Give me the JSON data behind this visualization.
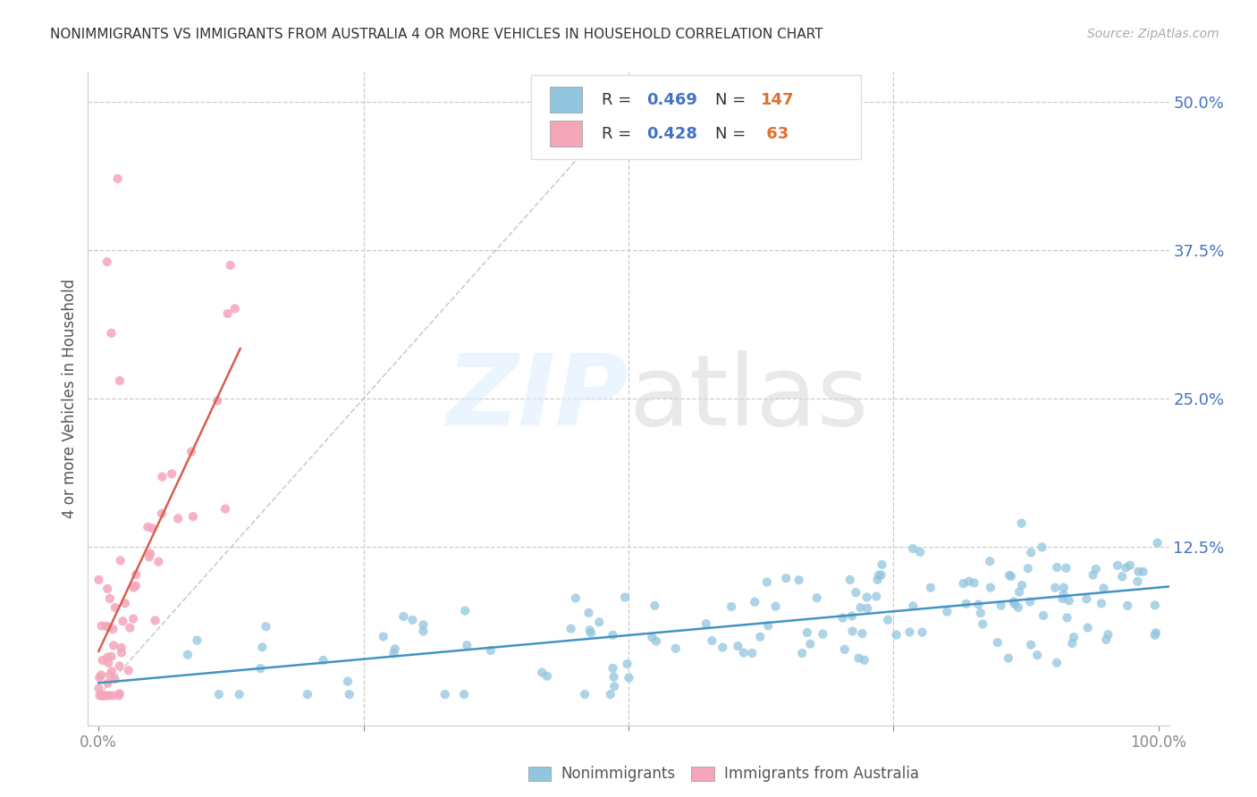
{
  "title": "NONIMMIGRANTS VS IMMIGRANTS FROM AUSTRALIA 4 OR MORE VEHICLES IN HOUSEHOLD CORRELATION CHART",
  "source": "Source: ZipAtlas.com",
  "ylabel": "4 or more Vehicles in Household",
  "xlim": [
    -0.01,
    1.01
  ],
  "ylim": [
    -0.025,
    0.525
  ],
  "yticks": [
    0.0,
    0.125,
    0.25,
    0.375,
    0.5
  ],
  "ytick_labels": [
    "",
    "12.5%",
    "25.0%",
    "37.5%",
    "50.0%"
  ],
  "xtick_labels": [
    "0.0%",
    "",
    "",
    "",
    "100.0%"
  ],
  "blue_R": 0.469,
  "blue_N": 147,
  "pink_R": 0.428,
  "pink_N": 63,
  "blue_color": "#92c5de",
  "pink_color": "#f4a6bb",
  "blue_line_color": "#4393c3",
  "pink_line_color": "#d6604d",
  "title_color": "#333333",
  "source_color": "#aaaaaa",
  "tick_color_right": "#4472c4",
  "background_color": "#ffffff",
  "grid_color": "#cccccc",
  "legend_label_blue": "Nonimmigrants",
  "legend_label_pink": "Immigrants from Australia"
}
